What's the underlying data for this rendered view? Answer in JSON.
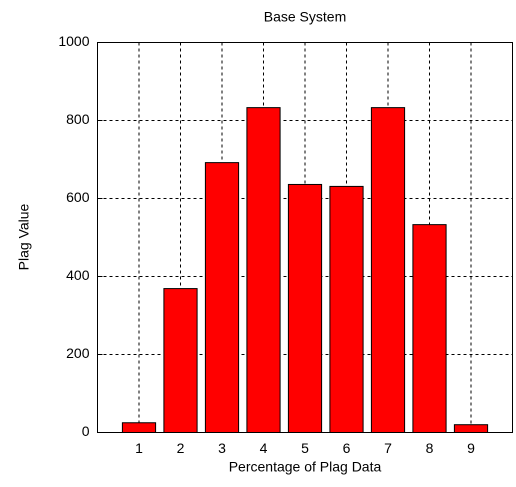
{
  "chart_data": {
    "type": "bar",
    "title": "Base System",
    "x_label": "Percentage of Plag Data",
    "y_label": "Plag Value",
    "x": [
      1,
      2,
      3,
      4,
      5,
      6,
      7,
      8,
      9
    ],
    "values": [
      25,
      369,
      692,
      833,
      636,
      631,
      833,
      533,
      20
    ],
    "color": "#ff0000",
    "xlim": [
      0,
      10
    ],
    "xticks": [
      1,
      2,
      3,
      4,
      5,
      6,
      7,
      8,
      9
    ],
    "ylim": [
      0,
      1000
    ],
    "yticks": [
      0,
      200,
      400,
      600,
      800,
      1000
    ],
    "grid": true
  }
}
